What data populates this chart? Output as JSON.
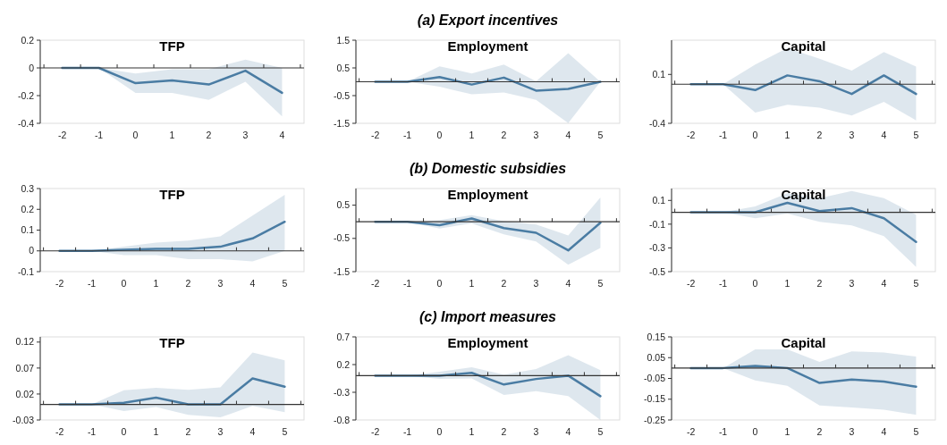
{
  "chart_data": [
    {
      "type": "line",
      "title": "TFP",
      "categories": [
        "-2",
        "-1",
        "0",
        "1",
        "2",
        "3",
        "4"
      ],
      "ylim": [
        -0.4,
        0.2
      ],
      "yticks": [
        0.2,
        0,
        -0.2,
        -0.4
      ],
      "series": [
        {
          "color": "#4a7ca3",
          "values": [
            0,
            0,
            -0.11,
            -0.09,
            -0.12,
            -0.02,
            -0.18
          ],
          "lower": [
            0,
            0,
            -0.18,
            -0.18,
            -0.23,
            -0.1,
            -0.35
          ],
          "upper": [
            0,
            0,
            -0.04,
            -0.01,
            -0.01,
            0.06,
            0
          ]
        }
      ]
    },
    {
      "type": "line",
      "title": "Employment",
      "subtitle": "(a) Export incentives",
      "categories": [
        "-2",
        "-1",
        "0",
        "1",
        "2",
        "3",
        "4",
        "5"
      ],
      "ylim": [
        -1.5,
        1.5
      ],
      "yticks": [
        1.5,
        0.5,
        -0.5,
        -1.5
      ],
      "series": [
        {
          "color": "#4a7ca3",
          "values": [
            0,
            0,
            0.17,
            -0.1,
            0.15,
            -0.32,
            -0.26,
            0
          ],
          "lower": [
            0,
            0,
            -0.18,
            -0.45,
            -0.39,
            -0.65,
            -1.49,
            0
          ],
          "upper": [
            0,
            0,
            0.56,
            0.3,
            0.62,
            0.02,
            1.03,
            0
          ]
        }
      ]
    },
    {
      "type": "line",
      "title": "Capital",
      "categories": [
        "-2",
        "-1",
        "0",
        "1",
        "2",
        "3",
        "4",
        "5"
      ],
      "ylim": [
        -0.4,
        0.45
      ],
      "yticks": [
        0.1,
        -0.4
      ],
      "series": [
        {
          "color": "#4a7ca3",
          "values": [
            0,
            0,
            -0.06,
            0.09,
            0.03,
            -0.1,
            0.09,
            -0.1
          ],
          "lower": [
            0,
            0,
            -0.29,
            -0.21,
            -0.24,
            -0.32,
            -0.18,
            -0.37
          ],
          "upper": [
            0,
            0,
            0.2,
            0.37,
            0.26,
            0.14,
            0.33,
            0.18
          ]
        }
      ]
    },
    {
      "type": "line",
      "title": "TFP",
      "categories": [
        "-2",
        "-1",
        "0",
        "1",
        "2",
        "3",
        "4",
        "5"
      ],
      "ylim": [
        -0.1,
        0.3
      ],
      "yticks": [
        0.3,
        0.2,
        0.1,
        0,
        -0.1
      ],
      "series": [
        {
          "color": "#4a7ca3",
          "values": [
            0,
            0,
            0.005,
            0.01,
            0.01,
            0.02,
            0.06,
            0.14
          ],
          "lower": [
            0,
            0,
            -0.02,
            -0.02,
            -0.04,
            -0.04,
            -0.05,
            0
          ],
          "upper": [
            0,
            0,
            0.02,
            0.04,
            0.05,
            0.07,
            0.17,
            0.27
          ]
        }
      ]
    },
    {
      "type": "line",
      "title": "Employment",
      "subtitle": "(b) Domestic subsidies",
      "categories": [
        "-2",
        "-1",
        "0",
        "1",
        "2",
        "3",
        "4",
        "5"
      ],
      "ylim": [
        -1.5,
        1
      ],
      "yticks": [
        0.5,
        -0.5,
        -1.5
      ],
      "series": [
        {
          "color": "#4a7ca3",
          "values": [
            0,
            0,
            -0.1,
            0.1,
            -0.19,
            -0.33,
            -0.86,
            -0.03
          ],
          "lower": [
            0,
            0,
            -0.2,
            -0.05,
            -0.38,
            -0.59,
            -1.29,
            -0.79
          ],
          "upper": [
            0,
            0,
            0.05,
            0.2,
            0.02,
            -0.08,
            -0.41,
            0.73
          ]
        }
      ]
    },
    {
      "type": "line",
      "title": "Capital",
      "categories": [
        "-2",
        "-1",
        "0",
        "1",
        "2",
        "3",
        "4",
        "5"
      ],
      "ylim": [
        -0.5,
        0.2
      ],
      "yticks": [
        0.1,
        -0.1,
        -0.3,
        -0.5
      ],
      "series": [
        {
          "color": "#4a7ca3",
          "values": [
            0,
            0,
            0,
            0.08,
            0.01,
            0.035,
            -0.05,
            -0.25
          ],
          "lower": [
            0,
            0,
            -0.05,
            -0.01,
            -0.08,
            -0.11,
            -0.2,
            -0.46
          ],
          "upper": [
            0,
            0,
            0.05,
            0.16,
            0.12,
            0.18,
            0.12,
            -0.02
          ]
        }
      ]
    },
    {
      "type": "line",
      "title": "TFP",
      "categories": [
        "-2",
        "-1",
        "0",
        "1",
        "2",
        "3",
        "4",
        "5"
      ],
      "ylim": [
        -0.03,
        0.13
      ],
      "yticks": [
        0.12,
        0.07,
        0.02,
        -0.03
      ],
      "series": [
        {
          "color": "#4a7ca3",
          "values": [
            0,
            0,
            0.003,
            0.013,
            0,
            0,
            0.05,
            0.034
          ],
          "lower": [
            0,
            0,
            -0.013,
            -0.005,
            -0.02,
            -0.025,
            -0.003,
            -0.015
          ],
          "upper": [
            0,
            0,
            0.027,
            0.032,
            0.028,
            0.033,
            0.1,
            0.085
          ]
        }
      ]
    },
    {
      "type": "line",
      "title": "Employment",
      "subtitle": "(c) Import measures",
      "categories": [
        "-2",
        "-1",
        "0",
        "1",
        "2",
        "3",
        "4",
        "5"
      ],
      "ylim": [
        -0.8,
        0.7
      ],
      "yticks": [
        0.7,
        0.2,
        -0.3,
        -0.8
      ],
      "series": [
        {
          "color": "#4a7ca3",
          "values": [
            0,
            0,
            0,
            0.05,
            -0.16,
            -0.06,
            0,
            -0.37
          ],
          "lower": [
            0,
            0,
            -0.06,
            -0.05,
            -0.35,
            -0.28,
            -0.37,
            -0.8
          ],
          "upper": [
            0,
            0,
            0.07,
            0.15,
            0.02,
            0.12,
            0.37,
            0.1
          ]
        }
      ]
    },
    {
      "type": "line",
      "title": "Capital",
      "categories": [
        "-2",
        "-1",
        "0",
        "1",
        "2",
        "3",
        "4",
        "5"
      ],
      "ylim": [
        -0.25,
        0.15
      ],
      "yticks": [
        0.15,
        0.05,
        -0.05,
        -0.15,
        -0.25
      ],
      "series": [
        {
          "color": "#4a7ca3",
          "values": [
            0,
            0,
            0.01,
            0,
            -0.072,
            -0.055,
            -0.065,
            -0.09
          ],
          "lower": [
            0,
            0,
            -0.06,
            -0.085,
            -0.18,
            -0.19,
            -0.2,
            -0.225
          ],
          "upper": [
            0,
            0,
            0.09,
            0.09,
            0.03,
            0.08,
            0.075,
            0.055
          ]
        }
      ]
    }
  ]
}
